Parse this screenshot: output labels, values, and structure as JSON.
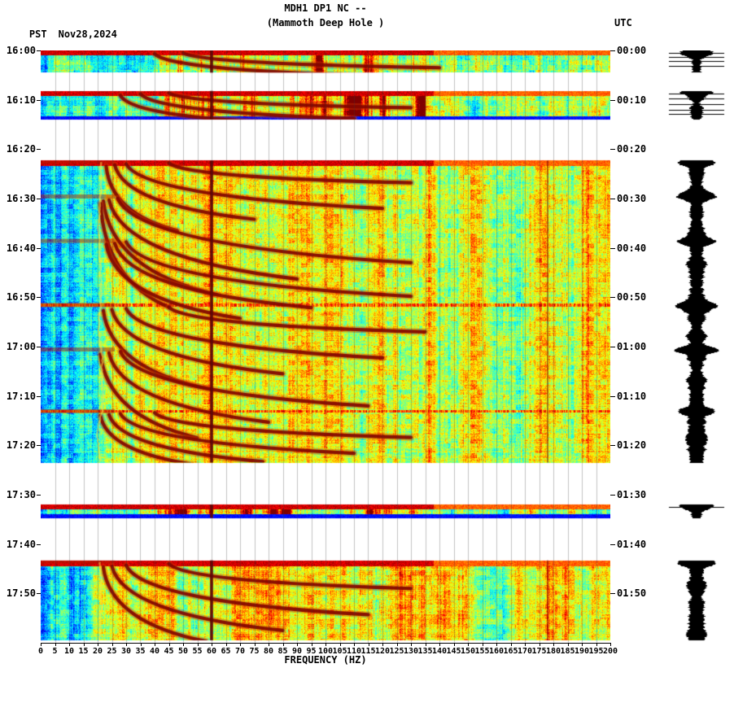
{
  "header": {
    "title": "MDH1 DP1 NC --",
    "subtitle": "(Mammoth Deep Hole )",
    "tz_left": "PST",
    "date": "Nov28,2024",
    "tz_right": "UTC"
  },
  "colors": {
    "background": "#ffffff",
    "text": "#000000",
    "grid": "#5a5a5a",
    "powerline_line": "#620000",
    "arc_core": "#820500",
    "arc_halo": "#d73c00",
    "trace": "#000000"
  },
  "chart_data": {
    "type": "heatmap",
    "title": "MDH1 DP1 NC --",
    "subtitle": "(Mammoth Deep Hole )",
    "station": "MDH1 DP1 NC",
    "station_name": "Mammoth Deep Hole",
    "colormap": "jet",
    "xlabel": "FREQUENCY (HZ)",
    "x_min": 0,
    "x_max": 200,
    "x_tick_step": 5,
    "x_tick_labels": [
      0,
      5,
      10,
      15,
      20,
      25,
      30,
      35,
      40,
      45,
      50,
      55,
      60,
      65,
      70,
      75,
      80,
      85,
      90,
      95,
      100,
      105,
      110,
      115,
      120,
      125,
      130,
      135,
      140,
      145,
      150,
      155,
      160,
      165,
      170,
      175,
      180,
      185,
      190,
      195,
      200
    ],
    "minutes_total": 120,
    "tick_minutes": 10,
    "left_time_labels": [
      "16:00",
      "16:10",
      "16:20",
      "16:30",
      "16:40",
      "16:50",
      "17:00",
      "17:10",
      "17:20",
      "17:30",
      "17:40",
      "17:50"
    ],
    "right_time_labels": [
      "00:00",
      "00:10",
      "00:20",
      "00:30",
      "00:40",
      "00:50",
      "01:00",
      "01:10",
      "01:20",
      "01:30",
      "01:40",
      "01:50"
    ],
    "segments": [
      {
        "start": 0,
        "end": 4.5,
        "style": "short",
        "onset_row": true,
        "bottom_blue_row": false
      },
      {
        "start": 8.2,
        "end": 14,
        "style": "short",
        "onset_row": true,
        "bottom_blue_row": true
      },
      {
        "start": 22.3,
        "end": 83.5,
        "style": "main",
        "onset_row": true,
        "bottom_blue_row": false
      },
      {
        "start": 92,
        "end": 94.7,
        "style": "short",
        "onset_row": true,
        "bottom_blue_row": true
      },
      {
        "start": 103.3,
        "end": 119.5,
        "style": "main",
        "onset_row": true,
        "bottom_blue_row": false
      }
    ],
    "gaps_min": [
      [
        4.5,
        8.2
      ],
      [
        14,
        22.3
      ],
      [
        83.5,
        92
      ],
      [
        94.7,
        103.3
      ]
    ],
    "powerline_hz": 60,
    "narrowband_hz": 178,
    "tremor_fundamental_hz": 21,
    "full_width_streaks_min": [
      51.5,
      73
    ],
    "arc_events": [
      {
        "t0": 0.2,
        "arcs": [
          [
            50,
            140,
            3,
            0.3
          ],
          [
            40,
            120,
            4.5,
            0.5
          ]
        ]
      },
      {
        "t0": 8.3,
        "arcs": [
          [
            45,
            130,
            3,
            0.3
          ],
          [
            35,
            110,
            5,
            0.5
          ],
          [
            28,
            80,
            5.5,
            0.8
          ]
        ]
      },
      {
        "t0": 22.5,
        "arcs": [
          [
            45,
            130,
            4,
            0.3
          ],
          [
            30,
            120,
            9,
            0.5
          ],
          [
            26,
            75,
            11,
            0.7
          ],
          [
            23,
            48,
            13,
            1
          ]
        ]
      },
      {
        "t0": 29.5,
        "arcs": [
          [
            27,
            130,
            13,
            0.5
          ],
          [
            24,
            90,
            16,
            0.8
          ],
          [
            22,
            62,
            19,
            1
          ],
          [
            21,
            45,
            21,
            1.5
          ]
        ]
      },
      {
        "t0": 38.5,
        "arcs": [
          [
            30,
            130,
            11,
            0.3
          ],
          [
            26,
            95,
            13,
            0.6
          ],
          [
            23,
            70,
            15,
            0.8
          ]
        ]
      },
      {
        "t0": 51.5,
        "arcs": [
          [
            45,
            135,
            5,
            0.5
          ],
          [
            30,
            120,
            10,
            0.8
          ],
          [
            25,
            85,
            13,
            1
          ],
          [
            22,
            60,
            16,
            1.2
          ]
        ]
      },
      {
        "t0": 60.5,
        "arcs": [
          [
            28,
            115,
            11,
            0.5
          ],
          [
            24,
            80,
            14,
            0.8
          ],
          [
            21,
            55,
            17,
            1
          ]
        ]
      },
      {
        "t0": 73,
        "arcs": [
          [
            40,
            130,
            5,
            0.4
          ],
          [
            28,
            110,
            8,
            0.6
          ],
          [
            24,
            78,
            9.5,
            0.8
          ],
          [
            21,
            55,
            10,
            1
          ]
        ]
      },
      {
        "t0": 103.5,
        "arcs": [
          [
            45,
            130,
            5,
            0.5
          ],
          [
            30,
            115,
            10,
            0.8
          ],
          [
            25,
            85,
            13,
            1
          ],
          [
            22,
            58,
            15,
            1.2
          ]
        ]
      }
    ]
  },
  "waveform": {
    "position": "right-of-plot",
    "clip_lines_min": [
      0.5,
      1.3,
      2.2,
      3.1,
      8.8,
      9.7,
      10.8,
      12.0,
      12.9,
      92.5
    ],
    "event_spike_min": [
      0.3,
      8.4,
      22.6,
      29.6,
      38.6,
      51.6,
      60.6,
      73,
      92.3,
      103.6
    ]
  }
}
